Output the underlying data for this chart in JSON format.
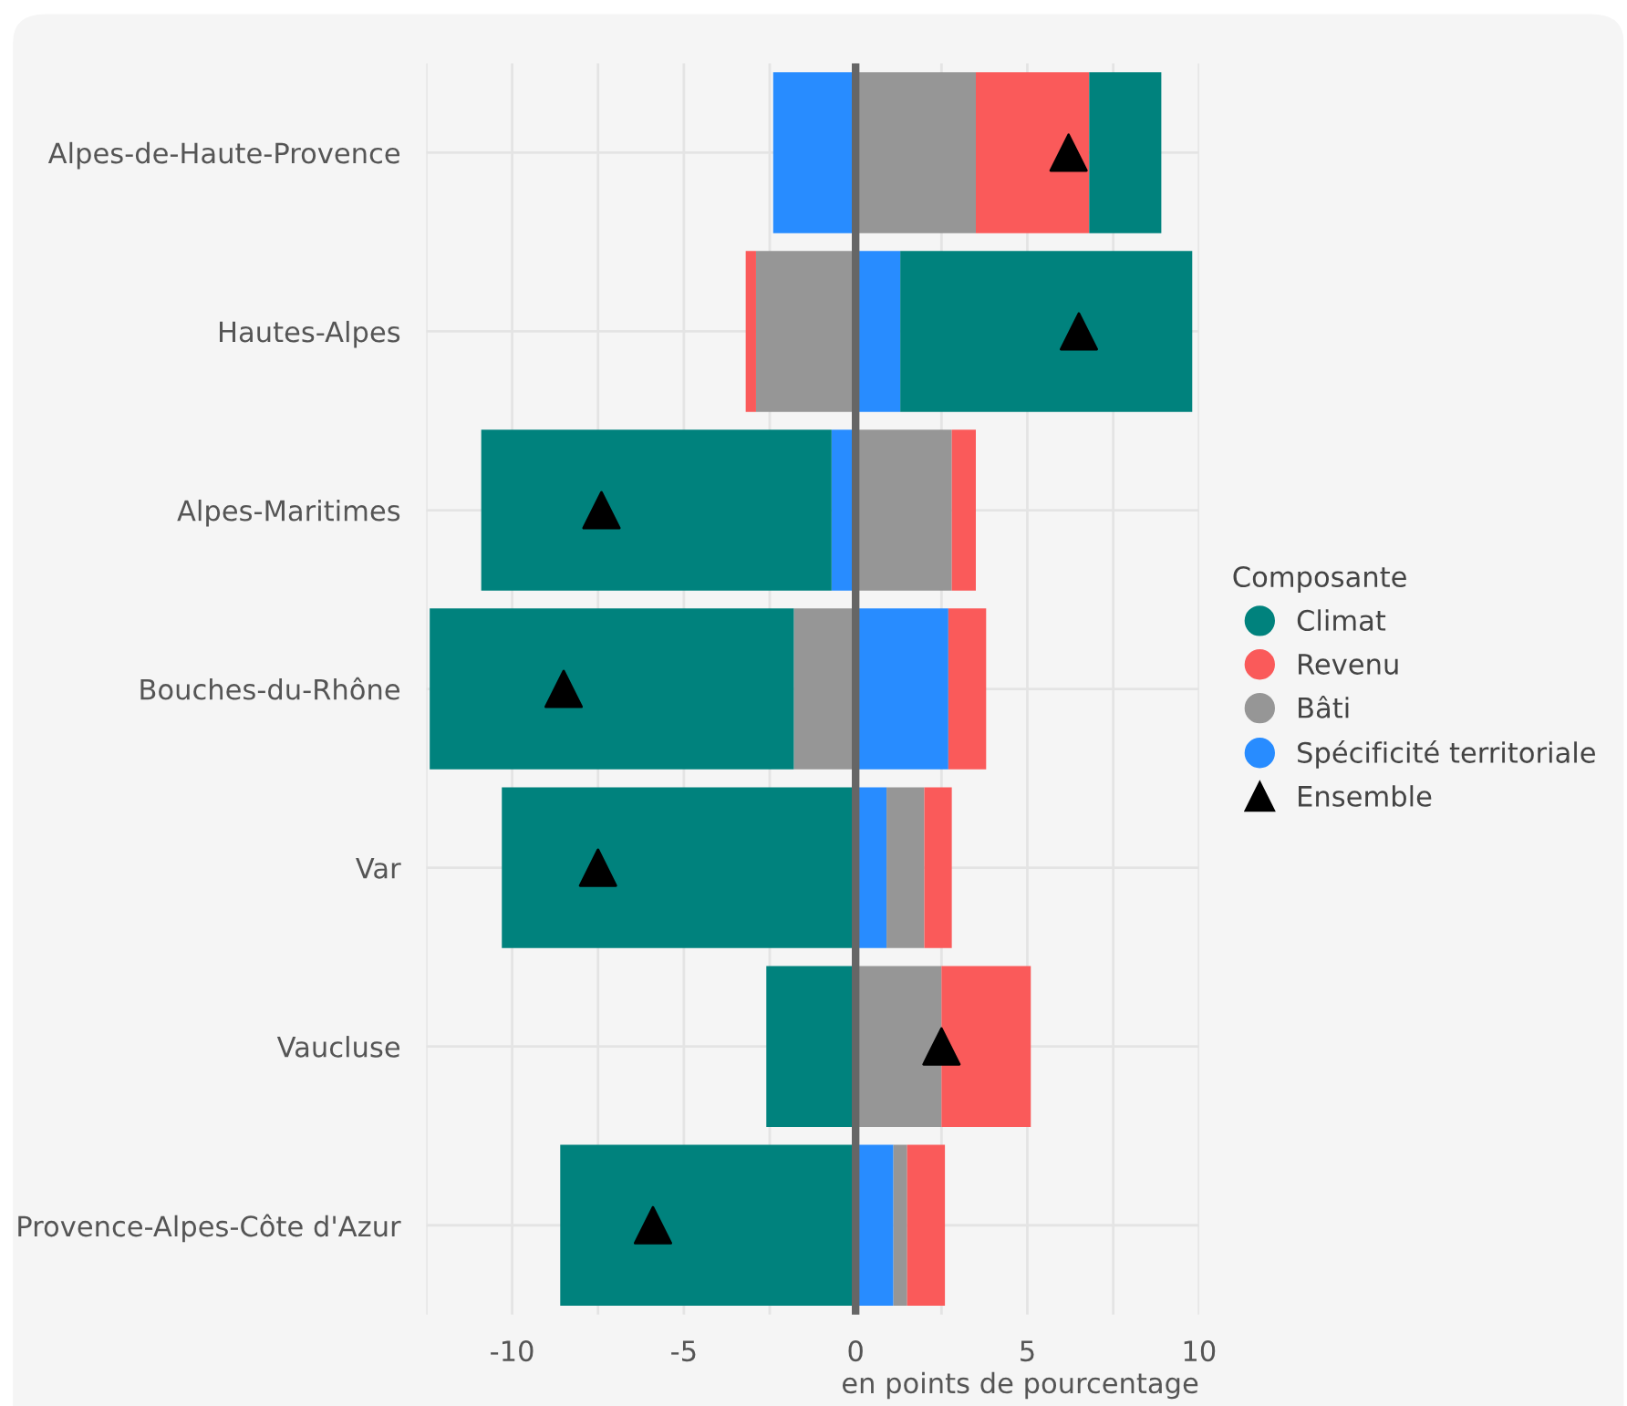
{
  "chart_data": {
    "type": "bar",
    "orientation": "horizontal",
    "stacked": true,
    "xlabel": "en points de pourcentage",
    "legend_title": "Composante",
    "legend": "right",
    "grid": true,
    "categories": [
      "Alpes-de-Haute-Provence",
      "Hautes-Alpes",
      "Alpes-Maritimes",
      "Bouches-du-Rhône",
      "Var",
      "Vaucluse",
      "Provence-Alpes-Côte d'Azur"
    ],
    "xlim": [
      -12.5,
      10
    ],
    "xticks": [
      {
        "value": -12.5,
        "label": null
      },
      -10,
      {
        "value": -7.5,
        "label": null
      },
      -5,
      {
        "value": -2.5,
        "label": null
      },
      0,
      {
        "value": 2.5,
        "label": null
      },
      5,
      {
        "value": 7.5,
        "label": null
      },
      10
    ],
    "series": [
      {
        "name": "Spécificité territoriale",
        "color": "#288cff",
        "values": [
          -2.4,
          1.3,
          -0.7,
          2.7,
          0.9,
          null,
          1.1
        ]
      },
      {
        "name": "Bâti",
        "color": "#969696",
        "values": [
          3.5,
          -2.9,
          2.8,
          -1.8,
          1.1,
          2.5,
          0.4
        ]
      },
      {
        "name": "Revenu",
        "color": "#fa5a5a",
        "values": [
          3.3,
          -0.3,
          0.7,
          1.1,
          0.8,
          2.6,
          1.1
        ]
      },
      {
        "name": "Climat",
        "color": "#00827d",
        "values": [
          2.1,
          8.5,
          -10.2,
          -10.6,
          -10.3,
          -2.6,
          -8.6
        ]
      },
      {
        "name": "Ensemble",
        "type": "scatter",
        "marker": "triangle",
        "color": "#000000",
        "values": [
          6.2,
          6.5,
          -7.4,
          -8.5,
          -7.5,
          2.5,
          -5.9
        ]
      }
    ],
    "ref_lines": [
      {
        "axis": "x",
        "value": 0,
        "color": "#666666"
      }
    ]
  }
}
